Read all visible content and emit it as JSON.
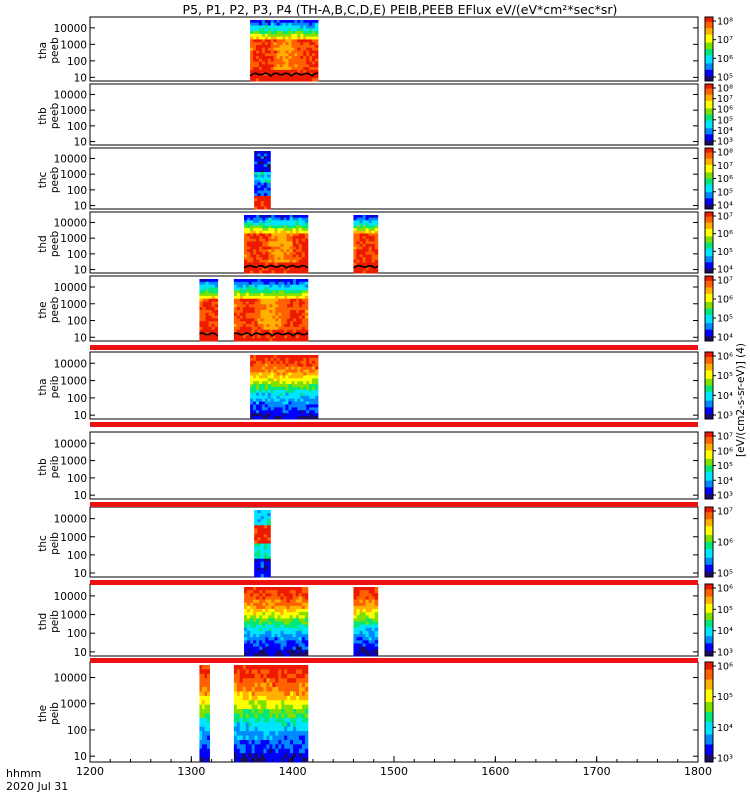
{
  "title": "P5, P1, P2, P3, P4 (TH-A,B,C,D,E) PEIB,PEEB EFlux eV/(eV*cm²*sec*sr)",
  "footer": {
    "label_line1": "hhmm",
    "label_line2": "2020 Jul 31"
  },
  "colorbar_unit_label": "[eV/(cm2-s-sr-eV)] (4)",
  "colors": {
    "spectrum": [
      "#1a0d66",
      "#0000ff",
      "#0088ff",
      "#00e5ff",
      "#00e87a",
      "#7fe000",
      "#ffff00",
      "#ffb000",
      "#ff6000",
      "#ee1a00"
    ],
    "blank_bar": "#ee1111",
    "sheath": "#ffb000"
  },
  "chart_data": {
    "type": "heatmap",
    "xlim": [
      1200,
      1800
    ],
    "x_ticks": [
      1200,
      1300,
      1400,
      1500,
      1600,
      1700,
      1800
    ],
    "y_scale": "log",
    "ylim": [
      6,
      30000
    ],
    "y_ticks": [
      "10",
      "100",
      "1000",
      "10000"
    ],
    "panels": [
      {
        "probe": "tha",
        "instrument": "peeb",
        "ylabel": "tha\npeeb",
        "cb_labels": [
          "10⁵",
          "10⁶",
          "10⁷",
          "10⁸"
        ],
        "segments": [
          {
            "x": [
              1358,
              1425
            ],
            "kind": "electron"
          }
        ]
      },
      {
        "probe": "thb",
        "instrument": "peeb",
        "ylabel": "thb\npeeb",
        "cb_labels": [
          "10³",
          "10⁴",
          "10⁵",
          "10⁶",
          "10⁷",
          "10⁸"
        ],
        "segments": []
      },
      {
        "probe": "thc",
        "instrument": "peeb",
        "ylabel": "thc\npeeb",
        "cb_labels": [
          "10⁴",
          "10⁵",
          "10⁶",
          "10⁷",
          "10⁸"
        ],
        "segments": [
          {
            "x": [
              1362,
              1378
            ],
            "kind": "electron_narrow"
          }
        ]
      },
      {
        "probe": "thd",
        "instrument": "peeb",
        "ylabel": "thd\npeeb",
        "cb_labels": [
          "10⁴",
          "10⁵",
          "10⁶",
          "10⁷"
        ],
        "segments": [
          {
            "x": [
              1352,
              1415
            ],
            "kind": "electron"
          },
          {
            "x": [
              1460,
              1484
            ],
            "kind": "electron"
          }
        ]
      },
      {
        "probe": "the",
        "instrument": "peeb",
        "ylabel": "the\npeeb",
        "cb_labels": [
          "10⁴",
          "10⁵",
          "10⁶",
          "10⁷"
        ],
        "segments": [
          {
            "x": [
              1308,
              1326
            ],
            "kind": "electron"
          },
          {
            "x": [
              1342,
              1415
            ],
            "kind": "electron"
          }
        ]
      },
      {
        "probe": "tha",
        "instrument": "peib",
        "ylabel": "tha\npeib",
        "cb_labels": [
          "10³",
          "10⁴",
          "10⁵",
          "10⁶"
        ],
        "segments": [
          {
            "x": [
              1358,
              1425
            ],
            "kind": "ion"
          }
        ]
      },
      {
        "probe": "thb",
        "instrument": "peib",
        "ylabel": "thb\npeib",
        "cb_labels": [
          "10³",
          "10⁴",
          "10⁵",
          "10⁶",
          "10⁷"
        ],
        "segments": []
      },
      {
        "probe": "thc",
        "instrument": "peib",
        "ylabel": "thc\npeib",
        "cb_labels": [
          "10⁵",
          "10⁶",
          "10⁷"
        ],
        "segments": [
          {
            "x": [
              1362,
              1378
            ],
            "kind": "ion_narrow"
          }
        ]
      },
      {
        "probe": "thd",
        "instrument": "peib",
        "ylabel": "thd\npeib",
        "cb_labels": [
          "10³",
          "10⁴",
          "10⁵",
          "10⁶"
        ],
        "segments": [
          {
            "x": [
              1352,
              1415
            ],
            "kind": "ion"
          },
          {
            "x": [
              1460,
              1484
            ],
            "kind": "ion"
          }
        ]
      },
      {
        "probe": "the",
        "instrument": "peib",
        "ylabel": "the\npeib",
        "cb_labels": [
          "10³",
          "10⁴",
          "10⁵",
          "10⁶"
        ],
        "segments": [
          {
            "x": [
              1308,
              1318
            ],
            "kind": "ion"
          },
          {
            "x": [
              1342,
              1415
            ],
            "kind": "ion"
          }
        ]
      }
    ]
  }
}
